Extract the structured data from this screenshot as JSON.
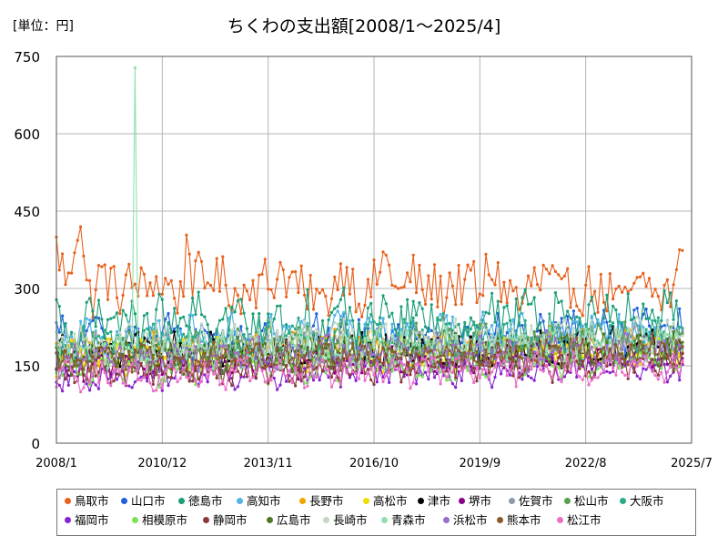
{
  "unit_label": "[単位：円]",
  "chart_data": {
    "type": "line",
    "title": "ちくわの支出額[2008/1〜2025/4]",
    "xlabel": "",
    "ylabel": "",
    "x_start": "2008/1",
    "x_end": "2025/4",
    "x_ticks": [
      "2008/1",
      "2010/12",
      "2013/11",
      "2016/10",
      "2019/9",
      "2022/8",
      "2025/7"
    ],
    "y_ticks": [
      0,
      150,
      300,
      450,
      600,
      750
    ],
    "ylim": [
      0,
      750
    ],
    "grid": true,
    "legend_position": "bottom",
    "series": [
      {
        "name": "鳥取市",
        "color": "#E8601C",
        "base": 320,
        "amp": 70,
        "values": [
          380,
          345,
          300,
          390,
          450,
          300,
          280,
          320,
          330,
          310,
          300,
          285,
          315,
          300,
          320,
          280,
          330,
          300,
          310,
          305,
          290,
          275,
          420,
          300,
          330,
          300,
          340,
          310,
          320,
          300,
          290,
          270,
          330,
          310,
          300,
          320,
          300,
          335,
          340,
          310,
          320,
          305,
          250,
          300,
          280,
          260,
          300,
          320,
          330,
          340,
          300,
          290,
          270,
          305,
          330,
          360,
          340,
          300,
          280,
          320,
          330,
          300,
          290,
          310,
          300,
          280,
          320,
          300,
          310,
          300,
          330,
          260,
          330,
          340,
          320,
          300,
          290,
          300,
          250,
          300,
          320,
          300,
          330,
          310,
          300,
          270,
          310,
          300,
          290,
          300,
          310,
          290,
          280,
          300,
          270,
          260,
          300,
          290,
          300,
          310,
          300,
          270,
          300,
          290,
          310,
          390
        ]
      },
      {
        "name": "山口市",
        "color": "#1F5FE0",
        "base": 200,
        "amp": 45,
        "values": []
      },
      {
        "name": "徳島市",
        "color": "#1A9E77",
        "base": 230,
        "amp": 55,
        "values": []
      },
      {
        "name": "高知市",
        "color": "#4FB4E8",
        "base": 205,
        "amp": 40,
        "values": []
      },
      {
        "name": "長野市",
        "color": "#F0A500",
        "base": 175,
        "amp": 35,
        "values": []
      },
      {
        "name": "高松市",
        "color": "#EEDD00",
        "base": 165,
        "amp": 35,
        "values": []
      },
      {
        "name": "津市",
        "color": "#000000",
        "base": 170,
        "amp": 38,
        "values": []
      },
      {
        "name": "堺市",
        "color": "#880088",
        "base": 150,
        "amp": 30,
        "values": []
      },
      {
        "name": "佐賀市",
        "color": "#8E9AA8",
        "base": 175,
        "amp": 35,
        "values": []
      },
      {
        "name": "松山市",
        "color": "#5A9E52",
        "base": 180,
        "amp": 40,
        "values": []
      },
      {
        "name": "大阪市",
        "color": "#2BAA88",
        "base": 190,
        "amp": 45,
        "values": []
      },
      {
        "name": "福岡市",
        "color": "#8822CC",
        "base": 130,
        "amp": 30,
        "values": []
      },
      {
        "name": "相模原市",
        "color": "#7EE05A",
        "base": 140,
        "amp": 30,
        "values": []
      },
      {
        "name": "静岡市",
        "color": "#8B3A3A",
        "base": 135,
        "amp": 30,
        "values": []
      },
      {
        "name": "広島市",
        "color": "#4C7A1E",
        "base": 165,
        "amp": 32,
        "values": []
      },
      {
        "name": "長崎市",
        "color": "#C4D7C0",
        "base": 190,
        "amp": 40,
        "values": []
      },
      {
        "name": "青森市",
        "color": "#8FE0B0",
        "base": 175,
        "amp": 35,
        "values": []
      },
      {
        "name": "浜松市",
        "color": "#9B6FC8",
        "base": 165,
        "amp": 35,
        "values": []
      },
      {
        "name": "熊本市",
        "color": "#8A5A2A",
        "base": 160,
        "amp": 32,
        "values": []
      },
      {
        "name": "松江市",
        "color": "#E870C8",
        "base": 130,
        "amp": 30,
        "values": []
      }
    ],
    "notable_points": [
      {
        "series": "青森市",
        "x": "2010/3",
        "y": 728
      }
    ]
  }
}
